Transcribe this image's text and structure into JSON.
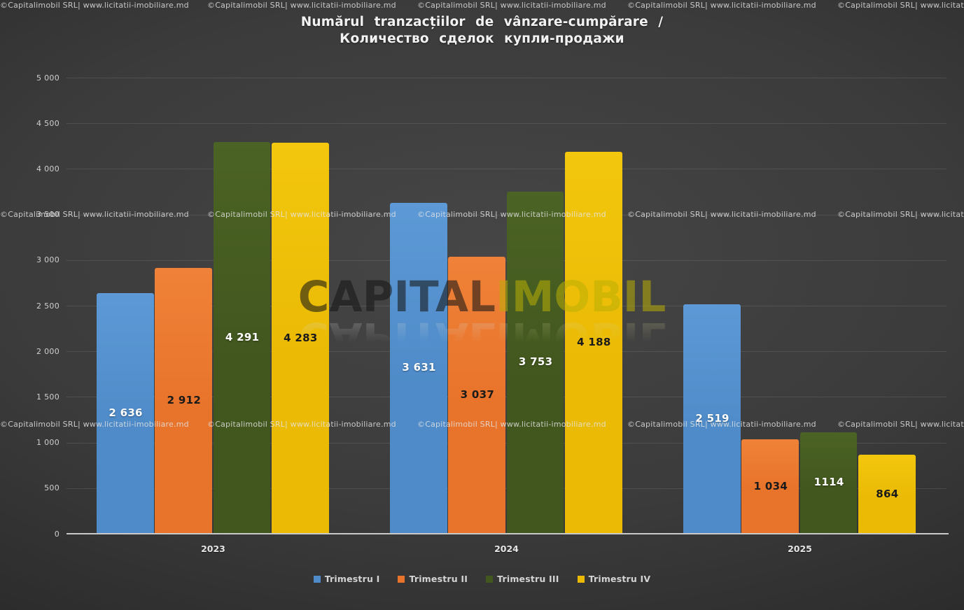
{
  "title": {
    "line1": "Numărul tranzacțiilor de vânzare-cumpărare /",
    "line2": "Количество сделок купли-продажи"
  },
  "watermark": {
    "tile_text": "©Capitalimobil SRL| www.licitatii-imobiliare.md",
    "brand_word1": "CAPITAL",
    "brand_word2": "IMOBIL"
  },
  "chart_data": {
    "type": "bar",
    "title": "Numărul tranzacțiilor de vânzare-cumpărare / Количество сделок купли-продажи",
    "categories": [
      "2023",
      "2024",
      "2025"
    ],
    "series": [
      {
        "name": "Trimestru I",
        "color": "#4e8bc8",
        "color_light": "#5c99d6",
        "values": [
          2636,
          3631,
          2519
        ],
        "value_labels": [
          "2 636",
          "3 631",
          "2 519"
        ],
        "label_color": "#ffffff"
      },
      {
        "name": "Trimestru II",
        "color": "#e8732a",
        "color_light": "#ef8238",
        "values": [
          2912,
          3037,
          1034
        ],
        "value_labels": [
          "2 912",
          "3 037",
          "1 034"
        ],
        "label_color": "#1a1a1a"
      },
      {
        "name": "Trimestru III",
        "color": "#42571e",
        "color_light": "#4b6324",
        "values": [
          4291,
          3753,
          1114
        ],
        "value_labels": [
          "4 291",
          "3 753",
          "1114"
        ],
        "label_color": "#ffffff"
      },
      {
        "name": "Trimestru IV",
        "color": "#eaba04",
        "color_light": "#f3c70e",
        "values": [
          4283,
          4188,
          864
        ],
        "value_labels": [
          "4 283",
          "4 188",
          "864"
        ],
        "label_color": "#1a1a1a"
      }
    ],
    "xlabel": "",
    "ylabel": "",
    "ylim": [
      0,
      5000
    ],
    "ytick_step": 500,
    "ytick_labels": [
      "0",
      "500",
      "1 000",
      "1 500",
      "2 000",
      "2 500",
      "3 000",
      "3 500",
      "4 000",
      "4 500",
      "5 000"
    ],
    "grid": true,
    "legend_position": "bottom"
  }
}
